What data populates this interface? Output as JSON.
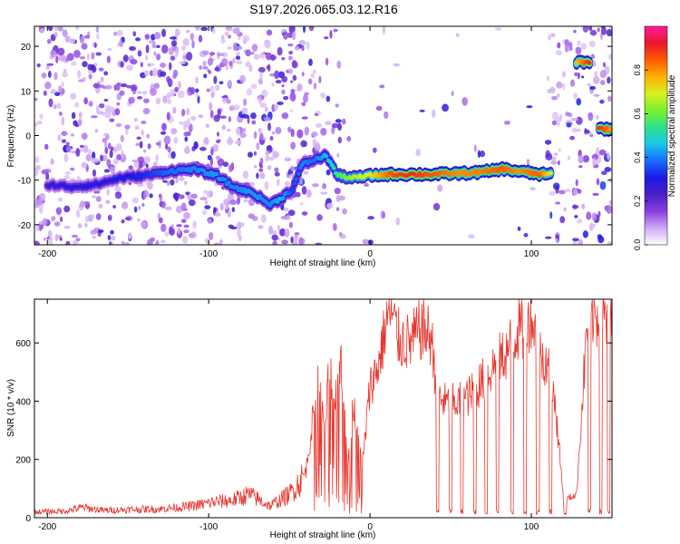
{
  "chart_data": [
    {
      "type": "heatmap",
      "title": "S197.2026.065.03.12.R16",
      "xlabel": "Height of straight line (km)",
      "ylabel": "Frequency (Hz)",
      "xlim": [
        -208,
        150
      ],
      "ylim": [
        -24.5,
        24.5
      ],
      "xticks": [
        -200,
        -100,
        0,
        100
      ],
      "xtick_labels": [
        "-200",
        "-100",
        "0",
        "100"
      ],
      "yticks": [
        -20,
        -10,
        0,
        10,
        20
      ],
      "ytick_labels": [
        "-20",
        "-10",
        "0",
        "10",
        "20"
      ],
      "colorbar": {
        "label": "Normalized spectral amplitude",
        "range": [
          0,
          1
        ],
        "ticks": [
          0.0,
          0.2,
          0.4,
          0.6,
          0.8
        ],
        "tick_labels": [
          "0.0",
          "0.2",
          "0.4",
          "0.6",
          "0.8"
        ],
        "colors": [
          "#ffffff",
          "#cfa8f2",
          "#8a3ee0",
          "#4b1fc8",
          "#1a1ae6",
          "#1a6cff",
          "#18c8e8",
          "#2ee08a",
          "#7df02a",
          "#d9f020",
          "#ffb000",
          "#ff5a00",
          "#e8182e",
          "#ff1a9a"
        ]
      },
      "ridge": [
        {
          "x": -200,
          "y": -11,
          "a": 0.25
        },
        {
          "x": -185,
          "y": -11.5,
          "a": 0.3
        },
        {
          "x": -170,
          "y": -11,
          "a": 0.28
        },
        {
          "x": -155,
          "y": -9.5,
          "a": 0.3
        },
        {
          "x": -140,
          "y": -9,
          "a": 0.32
        },
        {
          "x": -125,
          "y": -8,
          "a": 0.38
        },
        {
          "x": -110,
          "y": -7.5,
          "a": 0.4
        },
        {
          "x": -95,
          "y": -9,
          "a": 0.42
        },
        {
          "x": -85,
          "y": -11.5,
          "a": 0.4
        },
        {
          "x": -72,
          "y": -13,
          "a": 0.42
        },
        {
          "x": -62,
          "y": -15.5,
          "a": 0.4
        },
        {
          "x": -55,
          "y": -14,
          "a": 0.45
        },
        {
          "x": -48,
          "y": -12,
          "a": 0.35
        },
        {
          "x": -42,
          "y": -6.5,
          "a": 0.4
        },
        {
          "x": -35,
          "y": -5.5,
          "a": 0.38
        },
        {
          "x": -27,
          "y": -4.5,
          "a": 0.45
        },
        {
          "x": -20,
          "y": -9,
          "a": 0.55
        },
        {
          "x": -10,
          "y": -9.5,
          "a": 0.65
        },
        {
          "x": 0,
          "y": -9,
          "a": 0.7
        },
        {
          "x": 12,
          "y": -8.7,
          "a": 0.85
        },
        {
          "x": 25,
          "y": -8.7,
          "a": 0.9
        },
        {
          "x": 40,
          "y": -8.7,
          "a": 0.85
        },
        {
          "x": 55,
          "y": -8.5,
          "a": 0.8
        },
        {
          "x": 70,
          "y": -8.2,
          "a": 0.82
        },
        {
          "x": 82,
          "y": -7.5,
          "a": 0.85
        },
        {
          "x": 92,
          "y": -8,
          "a": 0.8
        },
        {
          "x": 105,
          "y": -8.7,
          "a": 0.85
        },
        {
          "x": 112,
          "y": -8.7,
          "a": 0.7
        },
        {
          "x": 128,
          "y": 16.5,
          "a": 0.75
        },
        {
          "x": 136,
          "y": 16.5,
          "a": 0.9
        },
        {
          "x": 142,
          "y": 1.5,
          "a": 0.9
        },
        {
          "x": 149,
          "y": 1.5,
          "a": 0.8
        }
      ]
    },
    {
      "type": "line",
      "xlabel": "Height of straight line (km)",
      "ylabel": "SNR (10 * v/v)",
      "xlim": [
        -208,
        150
      ],
      "ylim": [
        0,
        750
      ],
      "xticks": [
        -200,
        -100,
        0,
        100
      ],
      "xtick_labels": [
        "-200",
        "-100",
        "0",
        "100"
      ],
      "yticks": [
        0,
        200,
        400,
        600
      ],
      "ytick_labels": [
        "0",
        "200",
        "400",
        "600"
      ],
      "color": "#e8362e",
      "series": [
        {
          "name": "SNR",
          "x": [
            -208,
            -190,
            -178,
            -165,
            -150,
            -130,
            -110,
            -95,
            -85,
            -75,
            -62,
            -50,
            -40,
            -32,
            -28,
            -25,
            -22,
            -18,
            -14,
            -10,
            -5,
            0,
            5,
            12,
            18,
            25,
            32,
            38,
            42,
            48,
            55,
            62,
            70,
            78,
            85,
            92,
            95,
            100,
            105,
            110,
            115,
            120,
            128,
            135,
            140,
            145,
            150
          ],
          "y": [
            20,
            22,
            35,
            25,
            28,
            30,
            40,
            55,
            60,
            80,
            40,
            80,
            150,
            480,
            280,
            540,
            380,
            560,
            200,
            400,
            160,
            450,
            520,
            720,
            610,
            600,
            650,
            620,
            420,
            390,
            400,
            420,
            470,
            530,
            570,
            650,
            640,
            700,
            560,
            540,
            380,
            60,
            80,
            700,
            690,
            680,
            660
          ]
        }
      ],
      "dropouts": [
        42,
        50,
        57,
        65,
        72,
        79,
        88,
        96,
        104,
        112,
        121,
        136,
        143,
        148
      ]
    }
  ]
}
